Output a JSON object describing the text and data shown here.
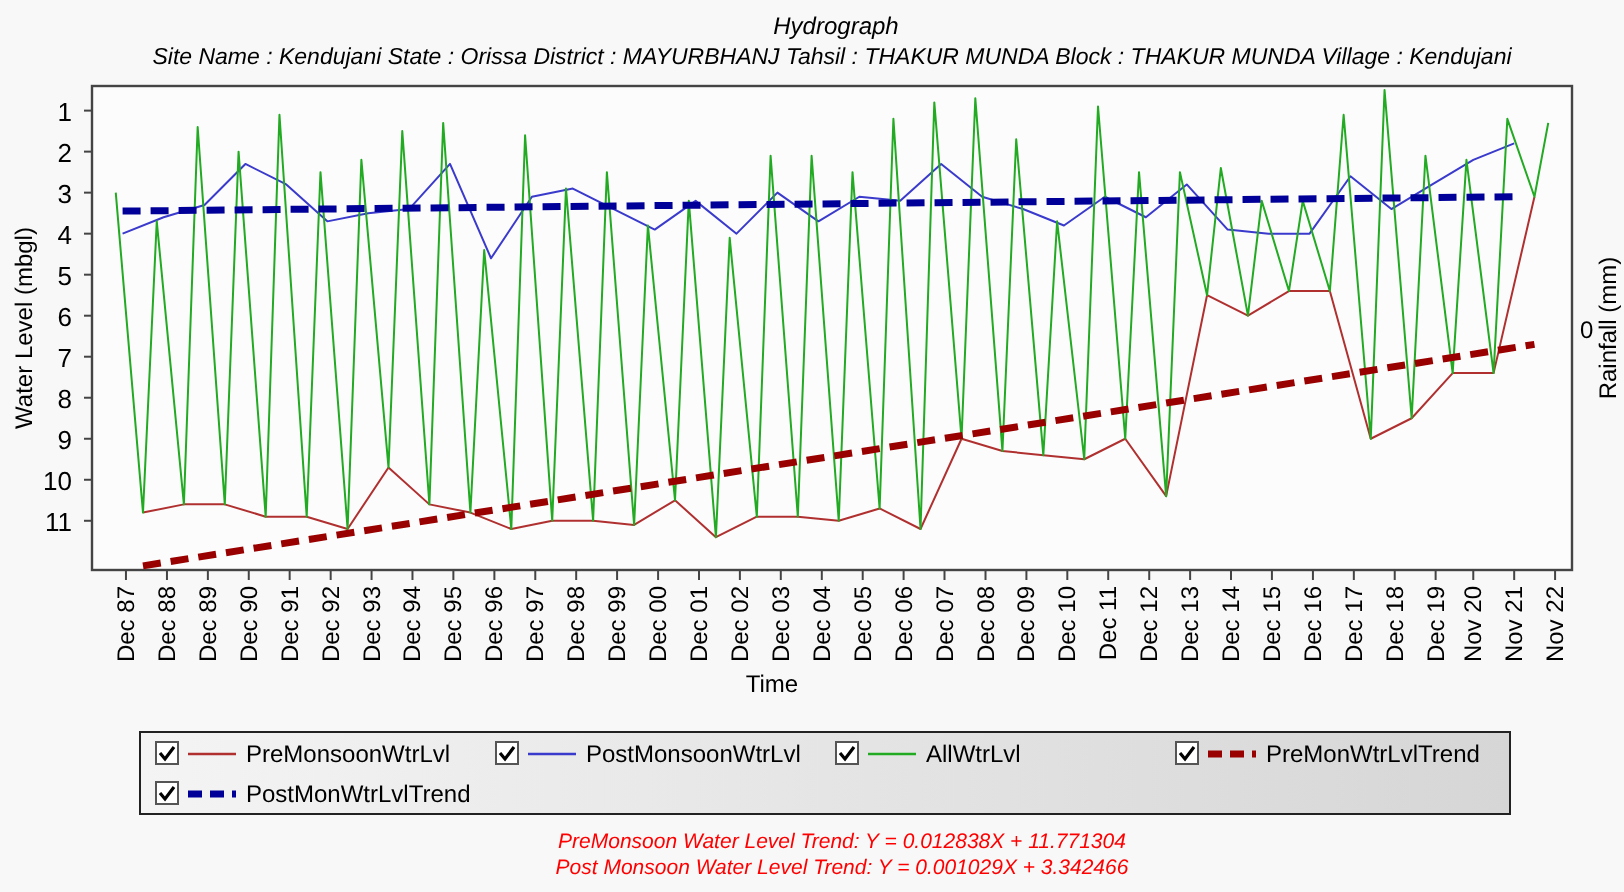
{
  "chart_data": {
    "type": "line",
    "title": "Hydrograph",
    "subtitle": "Site Name : Kendujani  State : Orissa District : MAYURBHANJ  Tahsil : THAKUR MUNDA  Block : THAKUR MUNDA Village : Kendujani",
    "xlabel": "Time",
    "ylabel": "Water Level (mbgl)",
    "y2label": "Rainfall (mm)",
    "xlim": [
      "1987-02",
      "2023-04"
    ],
    "xticks": [
      {
        "value": "1987-12",
        "label": "Dec 87"
      },
      {
        "value": "1988-12",
        "label": "Dec 88"
      },
      {
        "value": "1989-12",
        "label": "Dec 89"
      },
      {
        "value": "1990-12",
        "label": "Dec 90"
      },
      {
        "value": "1991-12",
        "label": "Dec 91"
      },
      {
        "value": "1992-12",
        "label": "Dec 92"
      },
      {
        "value": "1993-12",
        "label": "Dec 93"
      },
      {
        "value": "1994-12",
        "label": "Dec 94"
      },
      {
        "value": "1995-12",
        "label": "Dec 95"
      },
      {
        "value": "1996-12",
        "label": "Dec 96"
      },
      {
        "value": "1997-12",
        "label": "Dec 97"
      },
      {
        "value": "1998-12",
        "label": "Dec 98"
      },
      {
        "value": "1999-12",
        "label": "Dec 99"
      },
      {
        "value": "2000-12",
        "label": "Dec 00"
      },
      {
        "value": "2001-12",
        "label": "Dec 01"
      },
      {
        "value": "2002-12",
        "label": "Dec 02"
      },
      {
        "value": "2003-12",
        "label": "Dec 03"
      },
      {
        "value": "2004-12",
        "label": "Dec 04"
      },
      {
        "value": "2005-12",
        "label": "Dec 05"
      },
      {
        "value": "2006-12",
        "label": "Dec 06"
      },
      {
        "value": "2007-12",
        "label": "Dec 07"
      },
      {
        "value": "2008-12",
        "label": "Dec 08"
      },
      {
        "value": "2009-12",
        "label": "Dec 09"
      },
      {
        "value": "2010-12",
        "label": "Dec 10"
      },
      {
        "value": "2011-12",
        "label": "Dec 11"
      },
      {
        "value": "2012-12",
        "label": "Dec 12"
      },
      {
        "value": "2013-12",
        "label": "Dec 13"
      },
      {
        "value": "2014-12",
        "label": "Dec 14"
      },
      {
        "value": "2015-12",
        "label": "Dec 15"
      },
      {
        "value": "2016-12",
        "label": "Dec 16"
      },
      {
        "value": "2017-12",
        "label": "Dec 17"
      },
      {
        "value": "2018-12",
        "label": "Dec 18"
      },
      {
        "value": "2019-12",
        "label": "Dec 19"
      },
      {
        "value": "2020-11",
        "label": "Nov 20"
      },
      {
        "value": "2021-11",
        "label": "Nov 21"
      },
      {
        "value": "2022-11",
        "label": "Nov 22"
      }
    ],
    "ylim": [
      12.2,
      0.4
    ],
    "yticks": [
      1,
      2,
      3,
      4,
      5,
      6,
      7,
      8,
      9,
      10,
      11
    ],
    "legend": "bottom",
    "marker": "none",
    "grid": false,
    "series": [
      {
        "name": "PreMonsoonWtrLvl",
        "color": "#b03030",
        "x": [
          "1988-05",
          "1989-05",
          "1990-05",
          "1991-05",
          "1992-05",
          "1993-05",
          "1994-05",
          "1995-05",
          "1996-05",
          "1997-05",
          "1998-05",
          "1999-05",
          "2000-05",
          "2001-05",
          "2002-05",
          "2003-05",
          "2004-05",
          "2005-05",
          "2006-05",
          "2007-05",
          "2008-05",
          "2009-05",
          "2010-05",
          "2011-05",
          "2012-05",
          "2013-05",
          "2014-05",
          "2015-05",
          "2016-05",
          "2017-05",
          "2018-05",
          "2019-05",
          "2020-05",
          "2021-05",
          "2022-05"
        ],
        "values": [
          10.8,
          10.6,
          10.6,
          10.9,
          10.9,
          11.2,
          9.7,
          10.6,
          10.8,
          11.2,
          11.0,
          11.0,
          11.1,
          10.5,
          11.4,
          10.9,
          10.9,
          11.0,
          10.7,
          11.2,
          9.0,
          9.3,
          9.4,
          9.5,
          9.0,
          10.4,
          5.5,
          6.0,
          5.4,
          5.4,
          9.0,
          8.5,
          7.4,
          7.4,
          3.1
        ]
      },
      {
        "name": "PostMonsoonWtrLvl",
        "color": "#3a3acc",
        "x": [
          "1987-11",
          "1988-11",
          "1989-11",
          "1990-11",
          "1991-11",
          "1992-11",
          "1993-11",
          "1994-11",
          "1995-11",
          "1996-11",
          "1997-11",
          "1998-11",
          "1999-11",
          "2000-11",
          "2001-11",
          "2002-11",
          "2003-11",
          "2004-11",
          "2005-11",
          "2006-11",
          "2007-11",
          "2008-11",
          "2009-11",
          "2010-11",
          "2011-11",
          "2012-11",
          "2013-11",
          "2014-11",
          "2015-11",
          "2016-11",
          "2017-11",
          "2018-11",
          "2019-11",
          "2020-11",
          "2021-11"
        ],
        "values": [
          4.0,
          3.6,
          3.3,
          2.3,
          2.8,
          3.7,
          3.5,
          3.4,
          2.3,
          4.6,
          3.1,
          2.9,
          3.4,
          3.9,
          3.2,
          4.0,
          3.0,
          3.7,
          3.1,
          3.2,
          2.3,
          3.1,
          3.4,
          3.8,
          3.1,
          3.6,
          2.8,
          3.9,
          4.0,
          4.0,
          2.6,
          3.4,
          2.8,
          2.2,
          1.8
        ]
      },
      {
        "name": "AllWtrLvl",
        "color": "#22aa22",
        "x": [
          "1987-09",
          "1988-05",
          "1988-09",
          "1989-05",
          "1989-09",
          "1990-05",
          "1990-09",
          "1991-05",
          "1991-09",
          "1992-05",
          "1992-09",
          "1993-05",
          "1993-09",
          "1994-05",
          "1994-09",
          "1995-05",
          "1995-09",
          "1996-05",
          "1996-09",
          "1997-05",
          "1997-09",
          "1998-05",
          "1998-09",
          "1999-05",
          "1999-09",
          "2000-05",
          "2000-09",
          "2001-05",
          "2001-09",
          "2002-05",
          "2002-09",
          "2003-05",
          "2003-09",
          "2004-05",
          "2004-09",
          "2005-05",
          "2005-09",
          "2006-05",
          "2006-09",
          "2007-05",
          "2007-09",
          "2008-05",
          "2008-09",
          "2009-05",
          "2009-09",
          "2010-05",
          "2010-09",
          "2011-05",
          "2011-09",
          "2012-05",
          "2012-09",
          "2013-05",
          "2013-09",
          "2014-05",
          "2014-09",
          "2015-05",
          "2015-09",
          "2016-05",
          "2016-09",
          "2017-05",
          "2017-09",
          "2018-05",
          "2018-09",
          "2019-05",
          "2019-09",
          "2020-05",
          "2020-09",
          "2021-05",
          "2021-09",
          "2022-05",
          "2022-09"
        ],
        "values": [
          3.0,
          10.8,
          3.7,
          10.6,
          1.4,
          10.6,
          2.0,
          10.9,
          1.1,
          10.9,
          2.5,
          11.2,
          2.2,
          9.7,
          1.5,
          10.6,
          1.3,
          10.8,
          4.4,
          11.2,
          1.6,
          11.0,
          2.9,
          11.0,
          2.5,
          11.1,
          3.8,
          10.5,
          3.2,
          11.4,
          4.1,
          10.9,
          2.1,
          10.9,
          2.1,
          11.0,
          2.5,
          10.7,
          1.2,
          11.2,
          0.8,
          9.0,
          0.7,
          9.3,
          1.7,
          9.4,
          3.7,
          9.5,
          0.9,
          9.0,
          2.5,
          10.4,
          2.5,
          5.5,
          2.4,
          6.0,
          3.2,
          5.4,
          3.2,
          5.4,
          1.1,
          9.0,
          0.5,
          8.5,
          2.1,
          7.4,
          2.2,
          7.4,
          1.2,
          3.1,
          1.3
        ]
      },
      {
        "name": "PreMonWtrLvlTrend",
        "color": "#990000",
        "line_style": "dashed",
        "x": [
          "1988-05",
          "2022-05"
        ],
        "values": [
          12.1,
          6.7
        ]
      },
      {
        "name": "PostMonWtrLvlTrend",
        "color": "#000099",
        "line_style": "dashed",
        "x": [
          "1987-11",
          "2021-11"
        ],
        "values": [
          3.45,
          3.1
        ]
      }
    ],
    "annotations": [
      "0",
      "PreMonsoon Water Level Trend: Y = 0.012838X + 11.771304",
      "Post Monsoon Water Level Trend: Y = 0.001029X + 3.342466"
    ]
  }
}
